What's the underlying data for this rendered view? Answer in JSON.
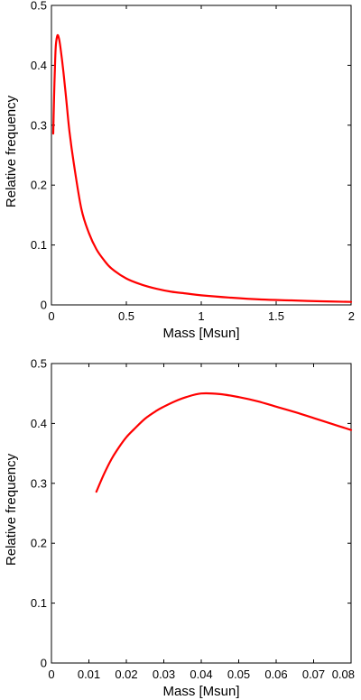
{
  "chart_data": [
    {
      "type": "line",
      "title": "",
      "xlabel": "Mass [Msun]",
      "ylabel": "Relative frequency",
      "xlim": [
        0,
        2
      ],
      "ylim": [
        0,
        0.5
      ],
      "xticks": [
        0,
        0.5,
        1,
        1.5,
        2
      ],
      "xtick_labels": [
        "0",
        "0.5",
        "1",
        "1.5",
        "2"
      ],
      "yticks": [
        0,
        0.1,
        0.2,
        0.3,
        0.4,
        0.5
      ],
      "ytick_labels": [
        "0",
        "0.1",
        "0.2",
        "0.3",
        "0.4",
        "0.5"
      ],
      "grid": false,
      "legend": "none",
      "series": [
        {
          "color": "#ff0000",
          "x": [
            0.012,
            0.015,
            0.02,
            0.025,
            0.03,
            0.04,
            0.05,
            0.06,
            0.08,
            0.1,
            0.12,
            0.15,
            0.2,
            0.25,
            0.3,
            0.35,
            0.4,
            0.5,
            0.6,
            0.7,
            0.8,
            0.9,
            1.0,
            1.2,
            1.4,
            1.6,
            1.8,
            2.0
          ],
          "y": [
            0.286,
            0.32,
            0.37,
            0.41,
            0.435,
            0.45,
            0.445,
            0.43,
            0.389,
            0.34,
            0.29,
            0.235,
            0.16,
            0.12,
            0.093,
            0.075,
            0.061,
            0.044,
            0.034,
            0.027,
            0.022,
            0.019,
            0.016,
            0.012,
            0.009,
            0.0075,
            0.006,
            0.005
          ]
        }
      ]
    },
    {
      "type": "line",
      "title": "",
      "xlabel": "Mass [Msun]",
      "ylabel": "Relative frequency",
      "xlim": [
        0,
        0.08
      ],
      "ylim": [
        0,
        0.5
      ],
      "xticks": [
        0,
        0.01,
        0.02,
        0.03,
        0.04,
        0.05,
        0.06,
        0.07,
        0.08
      ],
      "xtick_labels": [
        "0",
        "0.01",
        "0.02",
        "0.03",
        "0.04",
        "0.05",
        "0.06",
        "0.07",
        "0.08"
      ],
      "yticks": [
        0,
        0.1,
        0.2,
        0.3,
        0.4,
        0.5
      ],
      "ytick_labels": [
        "0",
        "0.1",
        "0.2",
        "0.3",
        "0.4",
        "0.5"
      ],
      "grid": false,
      "legend": "none",
      "series": [
        {
          "color": "#ff0000",
          "x": [
            0.012,
            0.014,
            0.016,
            0.018,
            0.02,
            0.022,
            0.025,
            0.028,
            0.03,
            0.033,
            0.036,
            0.04,
            0.045,
            0.05,
            0.055,
            0.06,
            0.065,
            0.07,
            0.075,
            0.08
          ],
          "y": [
            0.286,
            0.315,
            0.34,
            0.36,
            0.377,
            0.39,
            0.408,
            0.421,
            0.428,
            0.437,
            0.444,
            0.45,
            0.449,
            0.444,
            0.437,
            0.428,
            0.419,
            0.409,
            0.399,
            0.389
          ]
        }
      ]
    }
  ]
}
